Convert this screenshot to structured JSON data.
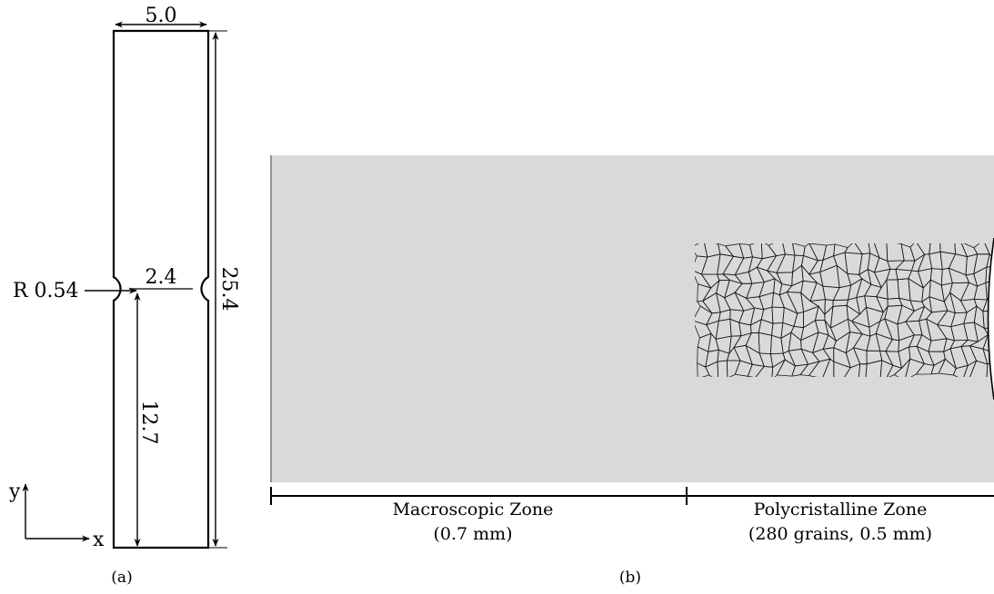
{
  "panel_a": {
    "caption": "(a)",
    "dimensions": {
      "width_top": "5.0",
      "total_length": "25.4",
      "neck_width": "2.4",
      "notch_radius": "R 0.54",
      "half_length": "12.7"
    },
    "axes": {
      "x_label": "x",
      "y_label": "y"
    }
  },
  "panel_b": {
    "caption": "(b)",
    "zones": [
      {
        "name": "Macroscopic Zone",
        "detail": "(0.7 mm)"
      },
      {
        "name": "Polycristalline Zone",
        "detail": "(280 grains, 0.5 mm)"
      }
    ],
    "grain_count": 280,
    "colors": {
      "domain_fill": "#d9d9d9",
      "grain_edges": "#1a1a1a"
    }
  }
}
